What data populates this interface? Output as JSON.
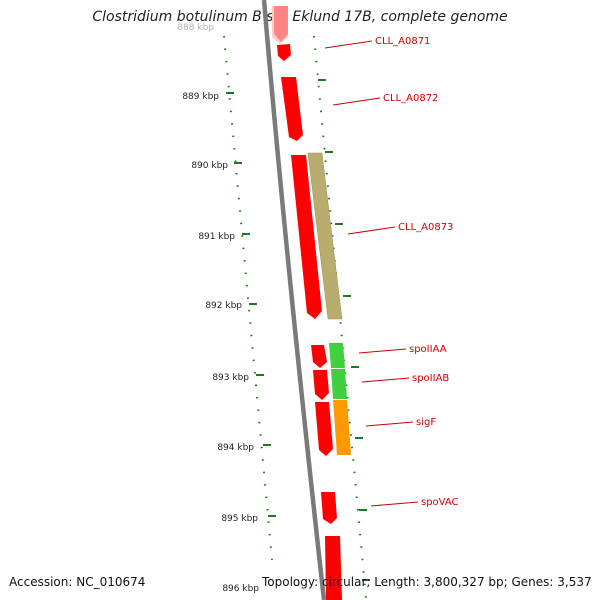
{
  "title": "Clostridium botulinum B str. Eklund 17B, complete genome",
  "footer": {
    "accession": "Accession: NC_010674",
    "topology": "Topology: circular; Length: 3,800,327 bp; Genes: 3,537"
  },
  "colors": {
    "backbone": "#7a7a7a",
    "tick": "#1e7a1e",
    "forward_gene": "#ff0000",
    "label": "#d00000",
    "cog_olive": "#b8ad6e",
    "cog_green": "#3fcf3f",
    "cog_orange": "#ff9900"
  },
  "scale_labels": [
    "888 kbp",
    "889 kbp",
    "890 kbp",
    "891 kbp",
    "892 kbp",
    "893 kbp",
    "894 kbp",
    "895 kbp",
    "896 kbp"
  ],
  "genes": [
    {
      "name": "CLL_A0871"
    },
    {
      "name": "CLL_A0872"
    },
    {
      "name": "CLL_A0873"
    },
    {
      "name": "spoIIAA"
    },
    {
      "name": "spoIIAB"
    },
    {
      "name": "sigF"
    },
    {
      "name": "spoVAC"
    }
  ]
}
